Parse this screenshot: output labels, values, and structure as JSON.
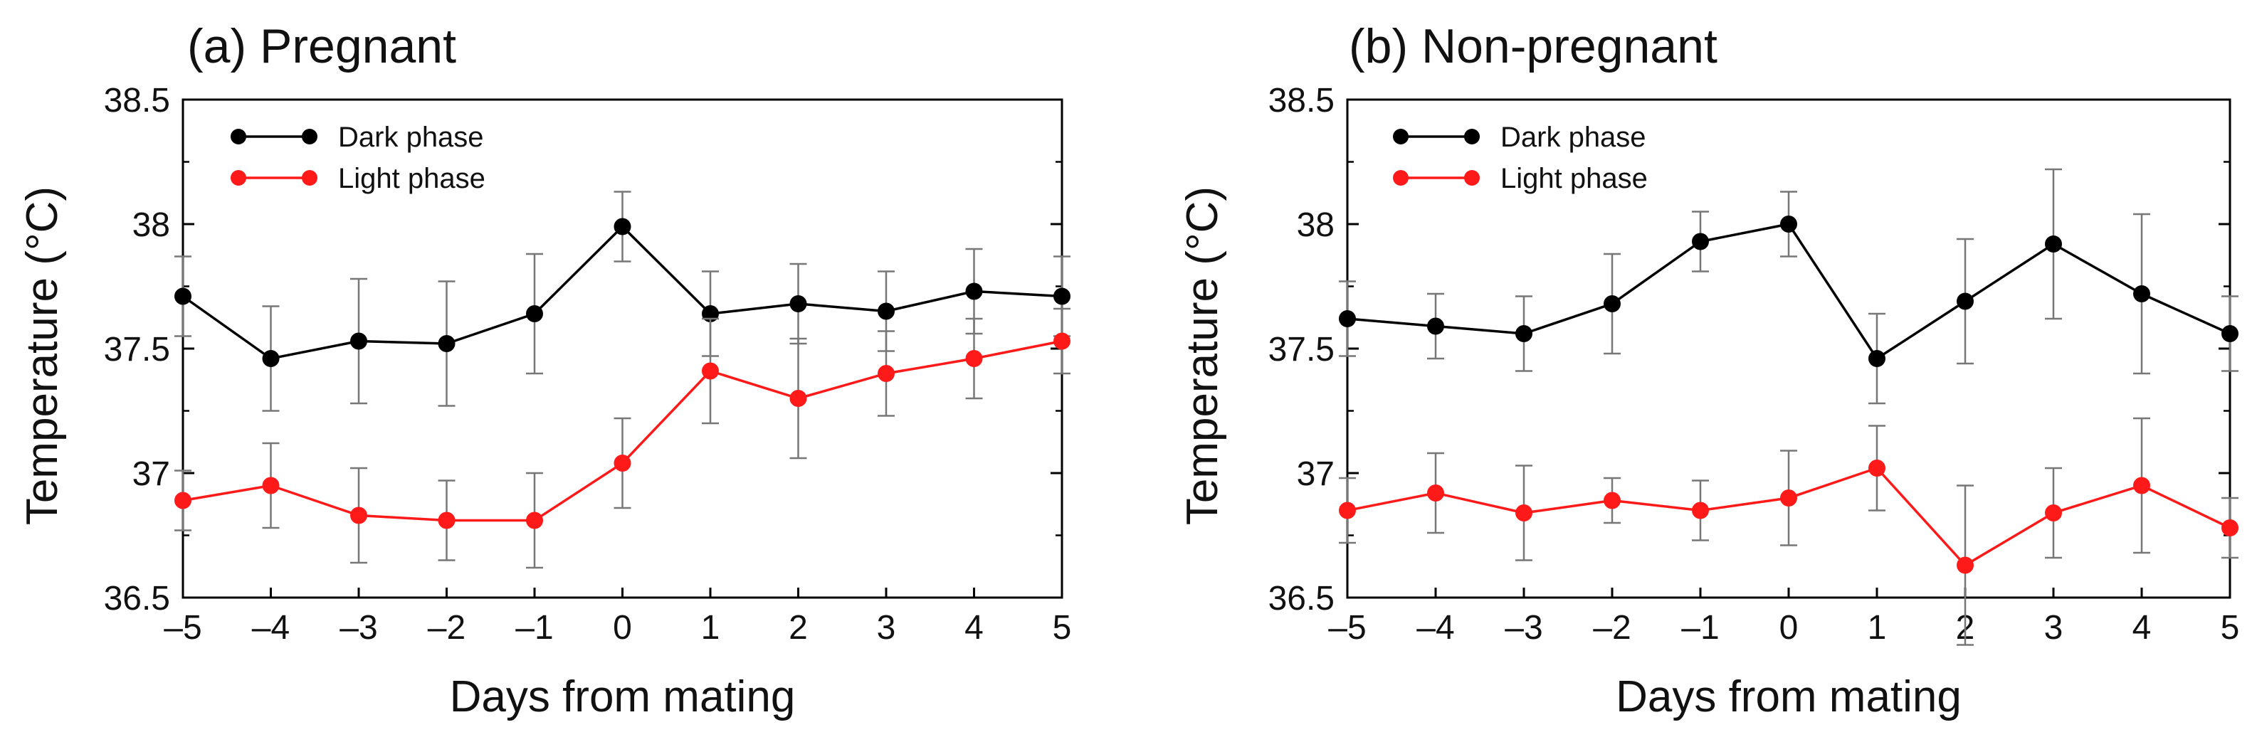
{
  "chart_data": [
    {
      "type": "line",
      "title": "(a) Pregnant",
      "xlabel": "Days from mating",
      "ylabel": "Temperature (°C)",
      "x": [
        -5,
        -4,
        -3,
        -2,
        -1,
        0,
        1,
        2,
        3,
        4,
        5
      ],
      "x_tick_labels": [
        "–5",
        "–4",
        "–3",
        "–2",
        "–1",
        "0",
        "1",
        "2",
        "3",
        "4",
        "5"
      ],
      "xlim": [
        -5,
        5
      ],
      "ylim": [
        36.5,
        38.5
      ],
      "y_ticks": [
        36.5,
        37,
        37.5,
        38,
        38.5
      ],
      "y_tick_labels": [
        "36.5",
        "37",
        "37.5",
        "38",
        "38.5"
      ],
      "legend_position": "top-left",
      "series": [
        {
          "name": "Dark phase",
          "color": "#000000",
          "values": [
            37.71,
            37.46,
            37.53,
            37.52,
            37.64,
            37.99,
            37.64,
            37.68,
            37.65,
            37.73,
            37.71
          ],
          "errors": [
            0.16,
            0.21,
            0.25,
            0.25,
            0.24,
            0.14,
            0.17,
            0.16,
            0.16,
            0.17,
            0.16
          ]
        },
        {
          "name": "Light phase",
          "color": "#ff1a1a",
          "values": [
            36.89,
            36.95,
            36.83,
            36.81,
            36.81,
            37.04,
            37.41,
            37.3,
            37.4,
            37.46,
            37.53
          ],
          "errors": [
            0.12,
            0.17,
            0.19,
            0.16,
            0.19,
            0.18,
            0.21,
            0.24,
            0.17,
            0.16,
            0.13
          ]
        }
      ]
    },
    {
      "type": "line",
      "title": "(b) Non-pregnant",
      "xlabel": "Days from mating",
      "ylabel": "Temperature (°C)",
      "x": [
        -5,
        -4,
        -3,
        -2,
        -1,
        0,
        1,
        2,
        3,
        4,
        5
      ],
      "x_tick_labels": [
        "–5",
        "–4",
        "–3",
        "–2",
        "–1",
        "0",
        "1",
        "2",
        "3",
        "4",
        "5"
      ],
      "xlim": [
        -5,
        5
      ],
      "ylim": [
        36.5,
        38.5
      ],
      "y_ticks": [
        36.5,
        37,
        37.5,
        38,
        38.5
      ],
      "y_tick_labels": [
        "36.5",
        "37",
        "37.5",
        "38",
        "38.5"
      ],
      "legend_position": "top-left",
      "series": [
        {
          "name": "Dark phase",
          "color": "#000000",
          "values": [
            37.62,
            37.59,
            37.56,
            37.68,
            37.93,
            38.0,
            37.46,
            37.69,
            37.92,
            37.72,
            37.56
          ],
          "errors": [
            0.15,
            0.13,
            0.15,
            0.2,
            0.12,
            0.13,
            0.18,
            0.25,
            0.3,
            0.32,
            0.15
          ]
        },
        {
          "name": "Light phase",
          "color": "#ff1a1a",
          "values": [
            36.85,
            36.92,
            36.84,
            36.89,
            36.85,
            36.9,
            37.02,
            36.63,
            36.84,
            36.95,
            36.78
          ],
          "errors": [
            0.13,
            0.16,
            0.19,
            0.09,
            0.12,
            0.19,
            0.17,
            0.32,
            0.18,
            0.27,
            0.12
          ]
        }
      ]
    }
  ]
}
